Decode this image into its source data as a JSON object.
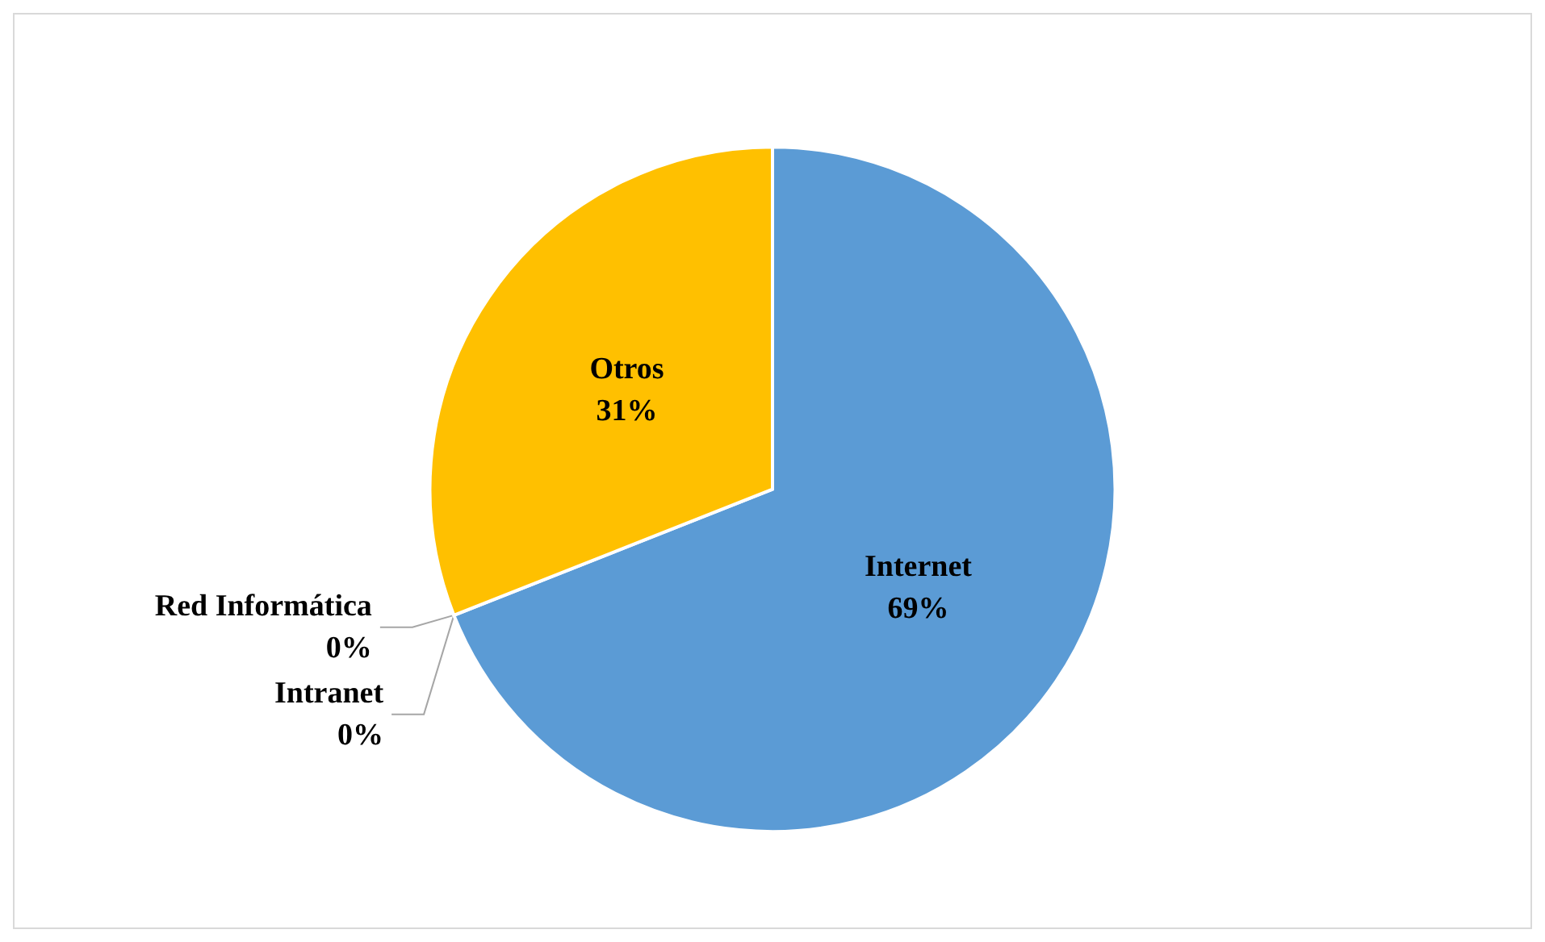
{
  "chart_data": {
    "type": "pie",
    "categories": [
      "Internet",
      "Red Informática",
      "Intranet",
      "Otros"
    ],
    "values": [
      69,
      0,
      0,
      31
    ],
    "colors": [
      "#5b9bd5",
      "#a5a5a5",
      "#ed7d31",
      "#ffc000"
    ],
    "value_labels": [
      "69%",
      "0%",
      "0%",
      "31%"
    ]
  }
}
